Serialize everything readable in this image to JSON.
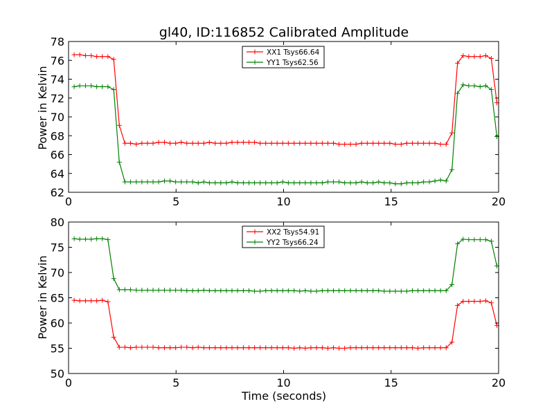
{
  "chart_data": [
    {
      "type": "line",
      "title": "gl40, ID:116852 Calibrated Amplitude",
      "xlabel": "",
      "ylabel": "Power in Kelvin",
      "xlim": [
        0,
        20
      ],
      "ylim": [
        62,
        78
      ],
      "xticks": [
        0,
        5,
        10,
        15,
        20
      ],
      "yticks": [
        62,
        64,
        66,
        68,
        70,
        72,
        74,
        76,
        78
      ],
      "grid": false,
      "legend_position": "top-center",
      "x": [
        0.26,
        0.52,
        0.79,
        1.05,
        1.31,
        1.57,
        1.83,
        2.1,
        2.36,
        2.62,
        2.88,
        3.15,
        3.41,
        3.67,
        3.93,
        4.19,
        4.46,
        4.72,
        4.98,
        5.24,
        5.5,
        5.77,
        6.03,
        6.29,
        6.55,
        6.82,
        7.08,
        7.34,
        7.6,
        7.86,
        8.13,
        8.39,
        8.65,
        8.91,
        9.17,
        9.44,
        9.7,
        9.96,
        10.22,
        10.49,
        10.75,
        11.01,
        11.27,
        11.53,
        11.8,
        12.06,
        12.32,
        12.58,
        12.84,
        13.11,
        13.37,
        13.63,
        13.89,
        14.16,
        14.42,
        14.68,
        14.94,
        15.2,
        15.47,
        15.73,
        15.99,
        16.25,
        16.51,
        16.78,
        17.04,
        17.3,
        17.56,
        17.83,
        18.09,
        18.35,
        18.61,
        18.87,
        19.14,
        19.4,
        19.66,
        19.92
      ],
      "series": [
        {
          "name": "XX1 Tsys66.64",
          "color": "#ff0000",
          "values": [
            76.6,
            76.6,
            76.5,
            76.5,
            76.4,
            76.4,
            76.4,
            76.1,
            69.1,
            67.2,
            67.2,
            67.1,
            67.2,
            67.2,
            67.2,
            67.3,
            67.3,
            67.2,
            67.2,
            67.3,
            67.2,
            67.2,
            67.2,
            67.2,
            67.3,
            67.2,
            67.2,
            67.2,
            67.3,
            67.3,
            67.3,
            67.3,
            67.3,
            67.2,
            67.2,
            67.2,
            67.2,
            67.2,
            67.2,
            67.2,
            67.2,
            67.2,
            67.2,
            67.2,
            67.2,
            67.2,
            67.2,
            67.1,
            67.1,
            67.1,
            67.1,
            67.2,
            67.2,
            67.2,
            67.2,
            67.2,
            67.2,
            67.1,
            67.1,
            67.2,
            67.2,
            67.2,
            67.2,
            67.2,
            67.2,
            67.1,
            67.1,
            68.3,
            75.7,
            76.5,
            76.4,
            76.4,
            76.4,
            76.5,
            76.2,
            71.5
          ]
        },
        {
          "name": "YY1 Tsys62.56",
          "color": "#008000",
          "values": [
            73.2,
            73.3,
            73.3,
            73.3,
            73.2,
            73.2,
            73.2,
            72.9,
            65.2,
            63.1,
            63.1,
            63.1,
            63.1,
            63.1,
            63.1,
            63.1,
            63.2,
            63.2,
            63.1,
            63.1,
            63.1,
            63.1,
            63.0,
            63.1,
            63.0,
            63.0,
            63.0,
            63.0,
            63.1,
            63.0,
            63.0,
            63.0,
            63.0,
            63.0,
            63.0,
            63.0,
            63.0,
            63.1,
            63.0,
            63.0,
            63.0,
            63.0,
            63.0,
            63.0,
            63.0,
            63.1,
            63.1,
            63.1,
            63.0,
            63.0,
            63.0,
            63.1,
            63.0,
            63.0,
            63.1,
            63.0,
            63.0,
            62.9,
            62.9,
            63.0,
            63.0,
            63.0,
            63.1,
            63.1,
            63.2,
            63.3,
            63.2,
            64.4,
            72.5,
            73.4,
            73.3,
            73.3,
            73.2,
            73.3,
            72.9,
            67.9
          ]
        }
      ]
    },
    {
      "type": "line",
      "title": "",
      "xlabel": "Time (seconds)",
      "ylabel": "Power in Kelvin",
      "xlim": [
        0,
        20
      ],
      "ylim": [
        50,
        80
      ],
      "xticks": [
        0,
        5,
        10,
        15,
        20
      ],
      "yticks": [
        50,
        55,
        60,
        65,
        70,
        75,
        80
      ],
      "grid": false,
      "legend_position": "top-center",
      "x": [
        0.26,
        0.52,
        0.79,
        1.05,
        1.31,
        1.57,
        1.83,
        2.1,
        2.36,
        2.62,
        2.88,
        3.15,
        3.41,
        3.67,
        3.93,
        4.19,
        4.46,
        4.72,
        4.98,
        5.24,
        5.5,
        5.77,
        6.03,
        6.29,
        6.55,
        6.82,
        7.08,
        7.34,
        7.6,
        7.86,
        8.13,
        8.39,
        8.65,
        8.91,
        9.17,
        9.44,
        9.7,
        9.96,
        10.22,
        10.49,
        10.75,
        11.01,
        11.27,
        11.53,
        11.8,
        12.06,
        12.32,
        12.58,
        12.84,
        13.11,
        13.37,
        13.63,
        13.89,
        14.16,
        14.42,
        14.68,
        14.94,
        15.2,
        15.47,
        15.73,
        15.99,
        16.25,
        16.51,
        16.78,
        17.04,
        17.3,
        17.56,
        17.83,
        18.09,
        18.35,
        18.61,
        18.87,
        19.14,
        19.4,
        19.66,
        19.92
      ],
      "series": [
        {
          "name": "XX2 Tsys54.91",
          "color": "#ff0000",
          "values": [
            64.5,
            64.4,
            64.4,
            64.4,
            64.4,
            64.5,
            64.2,
            57.2,
            55.2,
            55.2,
            55.1,
            55.2,
            55.2,
            55.2,
            55.2,
            55.1,
            55.1,
            55.1,
            55.1,
            55.2,
            55.2,
            55.1,
            55.2,
            55.1,
            55.1,
            55.1,
            55.1,
            55.1,
            55.1,
            55.1,
            55.1,
            55.1,
            55.1,
            55.1,
            55.1,
            55.1,
            55.1,
            55.1,
            55.1,
            55.0,
            55.1,
            55.0,
            55.1,
            55.1,
            55.1,
            55.0,
            55.1,
            55.0,
            55.0,
            55.1,
            55.1,
            55.1,
            55.1,
            55.1,
            55.1,
            55.1,
            55.1,
            55.1,
            55.1,
            55.1,
            55.1,
            55.0,
            55.1,
            55.1,
            55.1,
            55.1,
            55.1,
            56.2,
            63.5,
            64.3,
            64.3,
            64.3,
            64.3,
            64.4,
            64.0,
            59.5
          ]
        },
        {
          "name": "YY2 Tsys66.24",
          "color": "#008000",
          "values": [
            76.7,
            76.6,
            76.6,
            76.6,
            76.7,
            76.7,
            76.5,
            68.8,
            66.6,
            66.6,
            66.6,
            66.5,
            66.5,
            66.5,
            66.5,
            66.5,
            66.5,
            66.5,
            66.5,
            66.5,
            66.4,
            66.4,
            66.4,
            66.5,
            66.4,
            66.4,
            66.4,
            66.4,
            66.4,
            66.4,
            66.4,
            66.4,
            66.3,
            66.3,
            66.4,
            66.4,
            66.4,
            66.4,
            66.4,
            66.4,
            66.3,
            66.4,
            66.3,
            66.3,
            66.4,
            66.4,
            66.4,
            66.4,
            66.4,
            66.4,
            66.4,
            66.4,
            66.4,
            66.4,
            66.4,
            66.3,
            66.3,
            66.3,
            66.3,
            66.3,
            66.4,
            66.4,
            66.4,
            66.4,
            66.4,
            66.4,
            66.4,
            67.6,
            75.7,
            76.6,
            76.5,
            76.5,
            76.5,
            76.5,
            76.2,
            71.3
          ]
        }
      ]
    }
  ]
}
